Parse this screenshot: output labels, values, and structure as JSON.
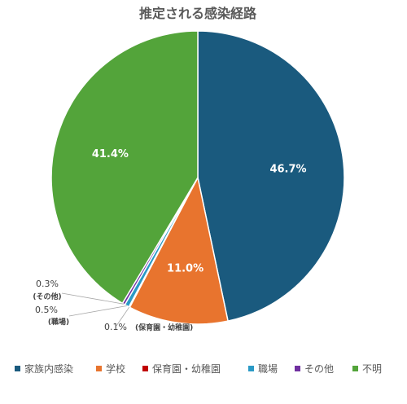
{
  "chart_data": {
    "type": "pie",
    "title": "推定される感染経路",
    "categories": [
      "家族内感染",
      "学校",
      "保育園・幼稚園",
      "職場",
      "その他",
      "不明"
    ],
    "values": [
      46.7,
      11.0,
      0.1,
      0.5,
      0.3,
      41.4
    ],
    "value_labels": [
      "46.7%",
      "11.0%",
      "0.1%",
      "0.5%",
      "0.3%",
      "41.4%"
    ],
    "outside_category_labels": {
      "保育園・幼稚園": "(保育園・幼稚園)",
      "職場": "(職場)",
      "その他": "(その他)"
    },
    "colors": [
      "#1a5a7e",
      "#e8742e",
      "#c00000",
      "#2a9ac6",
      "#7030a0",
      "#53a43a"
    ],
    "legend_position": "bottom",
    "start_angle": "12 o'clock, clockwise"
  }
}
